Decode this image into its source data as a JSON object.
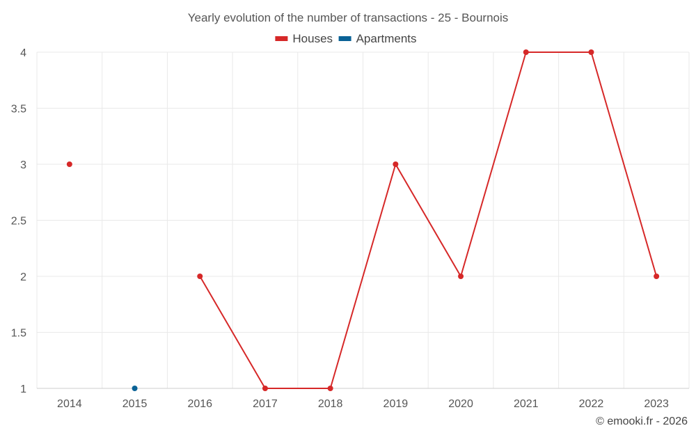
{
  "chart_data": {
    "type": "line",
    "title": "Yearly evolution of the number of transactions - 25 - Bournois",
    "categories": [
      "2014",
      "2015",
      "2016",
      "2017",
      "2018",
      "2019",
      "2020",
      "2021",
      "2022",
      "2023"
    ],
    "series": [
      {
        "name": "Houses",
        "color": "#d62828",
        "values": [
          3,
          null,
          2,
          1,
          1,
          3,
          2,
          4,
          4,
          2
        ]
      },
      {
        "name": "Apartments",
        "color": "#0a6296",
        "values": [
          null,
          1,
          null,
          null,
          null,
          null,
          null,
          null,
          null,
          null
        ]
      }
    ],
    "yticks": [
      "1",
      "1.5",
      "2",
      "2.5",
      "3",
      "3.5",
      "4"
    ],
    "ylim": [
      1,
      4
    ],
    "grid": true,
    "legend": "top-center"
  },
  "credit": "© emooki.fr - 2026"
}
